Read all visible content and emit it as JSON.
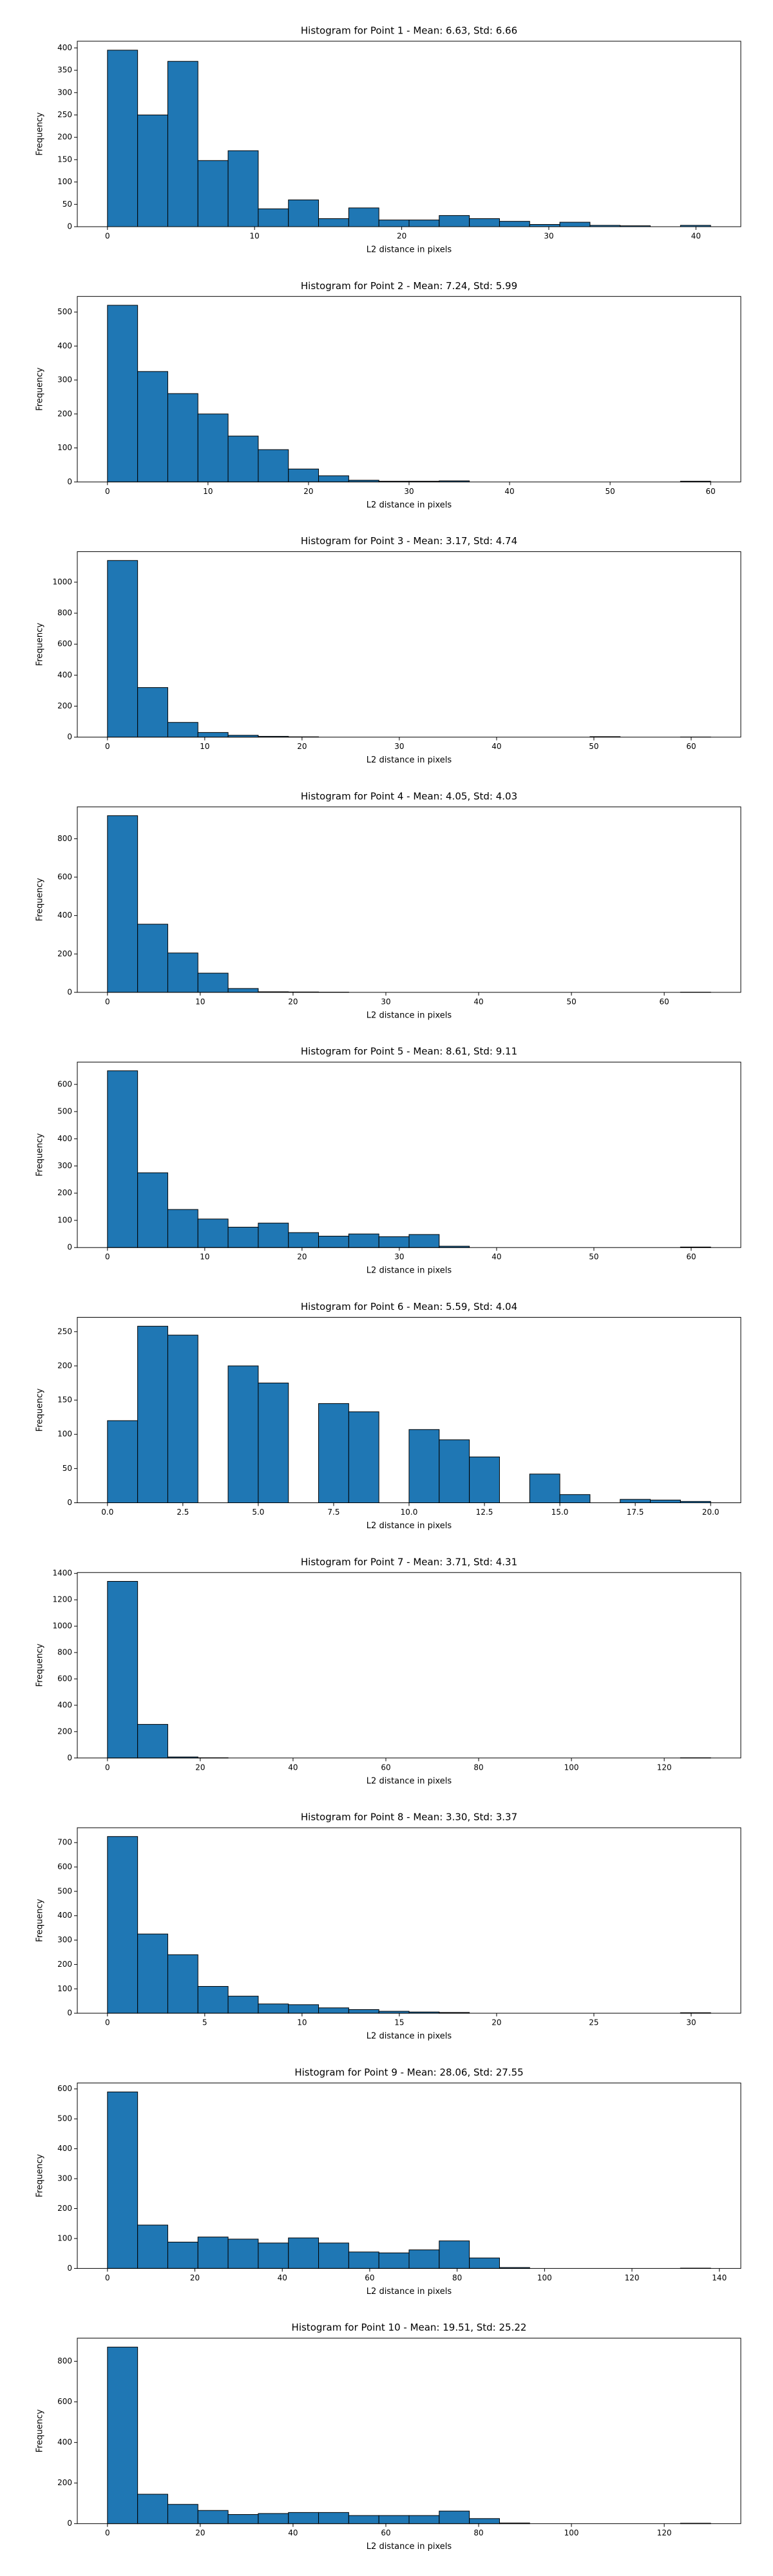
{
  "chart_data": [
    {
      "type": "histogram",
      "title": "Histogram for Point 1 - Mean: 6.63, Std: 6.66",
      "x_label": "L2 distance in pixels",
      "y_label": "Frequency",
      "color": "#1f77b4",
      "bins": [
        0,
        2.05,
        4.1,
        6.15,
        8.2,
        10.25,
        12.3,
        14.35,
        16.4,
        18.45,
        20.5,
        22.55,
        24.6,
        26.65,
        28.7,
        30.75,
        32.8,
        34.85,
        36.9,
        38.95,
        41
      ],
      "values": [
        395,
        250,
        370,
        148,
        170,
        40,
        60,
        18,
        42,
        15,
        15,
        25,
        18,
        12,
        5,
        10,
        3,
        2,
        0,
        3
      ],
      "xlim": [
        -2.05,
        43.05
      ],
      "xticks": [
        0,
        10,
        20,
        30,
        40
      ],
      "ylim": [
        0,
        415
      ],
      "yticks": [
        0,
        50,
        100,
        150,
        200,
        250,
        300,
        350,
        400
      ]
    },
    {
      "type": "histogram",
      "title": "Histogram for Point 2 - Mean: 7.24, Std: 5.99",
      "x_label": "L2 distance in pixels",
      "y_label": "Frequency",
      "color": "#1f77b4",
      "bins": [
        0,
        3,
        6,
        9,
        12,
        15,
        18,
        21,
        24,
        27,
        30,
        33,
        36,
        39,
        42,
        45,
        48,
        51,
        54,
        57,
        60
      ],
      "values": [
        520,
        325,
        260,
        200,
        135,
        95,
        38,
        18,
        5,
        2,
        2,
        3,
        0,
        0,
        0,
        0,
        0,
        0,
        0,
        2
      ],
      "xlim": [
        -3,
        63
      ],
      "xticks": [
        0,
        10,
        20,
        30,
        40,
        50,
        60
      ],
      "ylim": [
        0,
        546
      ],
      "yticks": [
        0,
        100,
        200,
        300,
        400,
        500
      ]
    },
    {
      "type": "histogram",
      "title": "Histogram for Point 3 - Mean: 3.17, Std: 4.74",
      "x_label": "L2 distance in pixels",
      "y_label": "Frequency",
      "color": "#1f77b4",
      "bins": [
        0,
        3.1,
        6.2,
        9.3,
        12.4,
        15.5,
        18.6,
        21.7,
        24.8,
        27.9,
        31,
        34.1,
        37.2,
        40.3,
        43.4,
        46.5,
        49.6,
        52.7,
        55.8,
        58.9,
        62
      ],
      "values": [
        1140,
        320,
        95,
        30,
        12,
        5,
        2,
        0,
        0,
        0,
        0,
        0,
        0,
        0,
        0,
        0,
        3,
        0,
        0,
        1
      ],
      "xlim": [
        -3.1,
        65.1
      ],
      "xticks": [
        0,
        10,
        20,
        30,
        40,
        50,
        60
      ],
      "ylim": [
        0,
        1197
      ],
      "yticks": [
        0,
        200,
        400,
        600,
        800,
        1000
      ]
    },
    {
      "type": "histogram",
      "title": "Histogram for Point 4 - Mean: 4.05, Std: 4.03",
      "x_label": "L2 distance in pixels",
      "y_label": "Frequency",
      "color": "#1f77b4",
      "bins": [
        0,
        3.25,
        6.5,
        9.75,
        13,
        16.25,
        19.5,
        22.75,
        26,
        29.25,
        32.5,
        35.75,
        39,
        42.25,
        45.5,
        48.75,
        52,
        55.25,
        58.5,
        61.75,
        65
      ],
      "values": [
        920,
        355,
        205,
        100,
        20,
        3,
        2,
        1,
        0,
        0,
        0,
        0,
        0,
        0,
        0,
        0,
        0,
        0,
        0,
        1
      ],
      "xlim": [
        -3.25,
        68.25
      ],
      "xticks": [
        0,
        10,
        20,
        30,
        40,
        50,
        60
      ],
      "ylim": [
        0,
        966
      ],
      "yticks": [
        0,
        200,
        400,
        600,
        800
      ]
    },
    {
      "type": "histogram",
      "title": "Histogram for Point 5 - Mean: 8.61, Std: 9.11",
      "x_label": "L2 distance in pixels",
      "y_label": "Frequency",
      "color": "#1f77b4",
      "bins": [
        0,
        3.1,
        6.2,
        9.3,
        12.4,
        15.5,
        18.6,
        21.7,
        24.8,
        27.9,
        31,
        34.1,
        37.2,
        40.3,
        43.4,
        46.5,
        49.6,
        52.7,
        55.8,
        58.9,
        62
      ],
      "values": [
        650,
        275,
        140,
        105,
        75,
        90,
        55,
        42,
        50,
        40,
        48,
        5,
        0,
        0,
        0,
        0,
        0,
        0,
        0,
        2
      ],
      "xlim": [
        -3.1,
        65.1
      ],
      "xticks": [
        0,
        10,
        20,
        30,
        40,
        50,
        60
      ],
      "ylim": [
        0,
        682
      ],
      "yticks": [
        0,
        100,
        200,
        300,
        400,
        500,
        600
      ]
    },
    {
      "type": "histogram",
      "title": "Histogram for Point 6 - Mean: 5.59, Std: 4.04",
      "x_label": "L2 distance in pixels",
      "y_label": "Frequency",
      "color": "#1f77b4",
      "bins": [
        0,
        1,
        2,
        3,
        4,
        5,
        6,
        7,
        8,
        9,
        10,
        11,
        12,
        13,
        14,
        15,
        16,
        17,
        18,
        19,
        20
      ],
      "values": [
        120,
        258,
        245,
        0,
        200,
        175,
        0,
        145,
        133,
        0,
        107,
        92,
        67,
        0,
        42,
        12,
        0,
        5,
        4,
        2
      ],
      "xlim": [
        -1,
        21
      ],
      "xticks": [
        {
          "value": 0,
          "label": "0.0"
        },
        2.5,
        {
          "value": 5,
          "label": "5.0"
        },
        7.5,
        {
          "value": 10,
          "label": "10.0"
        },
        12.5,
        {
          "value": 15,
          "label": "15.0"
        },
        17.5,
        {
          "value": 20,
          "label": "20.0"
        }
      ],
      "ylim": [
        0,
        271
      ],
      "yticks": [
        0,
        50,
        100,
        150,
        200,
        250
      ]
    },
    {
      "type": "histogram",
      "title": "Histogram for Point 7 - Mean: 3.71, Std: 4.31",
      "x_label": "L2 distance in pixels",
      "y_label": "Frequency",
      "color": "#1f77b4",
      "bins": [
        0,
        6.5,
        13,
        19.5,
        26,
        32.5,
        39,
        45.5,
        52,
        58.5,
        65,
        71.5,
        78,
        84.5,
        91,
        97.5,
        104,
        110.5,
        117,
        123.5,
        130
      ],
      "values": [
        1340,
        255,
        8,
        2,
        0,
        0,
        0,
        0,
        0,
        0,
        0,
        0,
        0,
        0,
        0,
        0,
        0,
        0,
        0,
        2
      ],
      "xlim": [
        -6.5,
        136.5
      ],
      "xticks": [
        0,
        20,
        40,
        60,
        80,
        100,
        120
      ],
      "ylim": [
        0,
        1407
      ],
      "yticks": [
        0,
        200,
        400,
        600,
        800,
        1000,
        1200,
        1400
      ]
    },
    {
      "type": "histogram",
      "title": "Histogram for Point 8 - Mean: 3.30, Std: 3.37",
      "x_label": "L2 distance in pixels",
      "y_label": "Frequency",
      "color": "#1f77b4",
      "bins": [
        0,
        1.55,
        3.1,
        4.65,
        6.2,
        7.75,
        9.3,
        10.85,
        12.4,
        13.95,
        15.5,
        17.05,
        18.6,
        20.15,
        21.7,
        23.25,
        24.8,
        26.35,
        27.9,
        29.45,
        31
      ],
      "values": [
        725,
        325,
        240,
        110,
        70,
        38,
        35,
        22,
        15,
        8,
        5,
        3,
        0,
        0,
        0,
        0,
        0,
        0,
        0,
        2
      ],
      "xlim": [
        -1.55,
        32.55
      ],
      "xticks": [
        0,
        5,
        10,
        15,
        20,
        25,
        30
      ],
      "ylim": [
        0,
        761
      ],
      "yticks": [
        0,
        100,
        200,
        300,
        400,
        500,
        600,
        700
      ]
    },
    {
      "type": "histogram",
      "title": "Histogram for Point 9 - Mean: 28.06, Std: 27.55",
      "x_label": "L2 distance in pixels",
      "y_label": "Frequency",
      "color": "#1f77b4",
      "bins": [
        0,
        6.9,
        13.8,
        20.7,
        27.6,
        34.5,
        41.4,
        48.3,
        55.2,
        62.1,
        69,
        75.9,
        82.8,
        89.7,
        96.6,
        103.5,
        110.4,
        117.3,
        124.2,
        131.1,
        138
      ],
      "values": [
        590,
        145,
        88,
        105,
        98,
        85,
        102,
        85,
        55,
        52,
        62,
        92,
        35,
        3,
        0,
        0,
        0,
        0,
        0,
        1
      ],
      "xlim": [
        -6.9,
        144.9
      ],
      "xticks": [
        0,
        20,
        40,
        60,
        80,
        100,
        120,
        140
      ],
      "ylim": [
        0,
        620
      ],
      "yticks": [
        0,
        100,
        200,
        300,
        400,
        500,
        600
      ]
    },
    {
      "type": "histogram",
      "title": "Histogram for Point 10 - Mean: 19.51, Std: 25.22",
      "x_label": "L2 distance in pixels",
      "y_label": "Frequency",
      "color": "#1f77b4",
      "bins": [
        0,
        6.5,
        13,
        19.5,
        26,
        32.5,
        39,
        45.5,
        52,
        58.5,
        65,
        71.5,
        78,
        84.5,
        91,
        97.5,
        104,
        110.5,
        117,
        123.5,
        130
      ],
      "values": [
        870,
        145,
        95,
        65,
        45,
        50,
        55,
        55,
        40,
        40,
        40,
        62,
        25,
        3,
        0,
        0,
        0,
        0,
        0,
        2
      ],
      "xlim": [
        -6.5,
        136.5
      ],
      "xticks": [
        0,
        20,
        40,
        60,
        80,
        100,
        120
      ],
      "ylim": [
        0,
        914
      ],
      "yticks": [
        0,
        200,
        400,
        600,
        800
      ]
    }
  ]
}
